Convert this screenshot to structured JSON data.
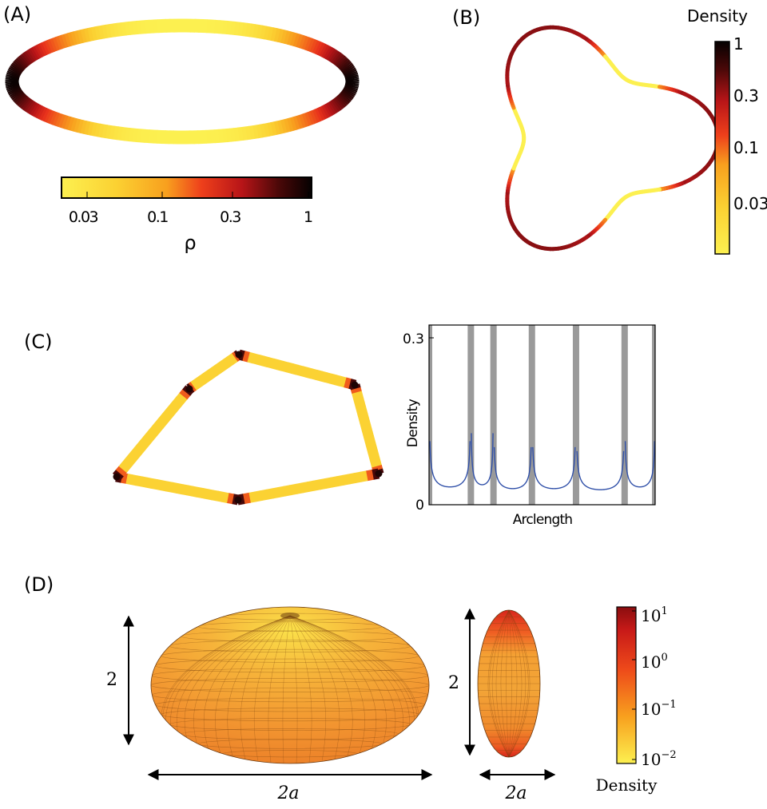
{
  "panels": {
    "a": {
      "label": "(A)",
      "colorbar": {
        "ticks": [
          "0.03",
          "0.1",
          "0.3",
          "1"
        ],
        "tick_values": [
          0.03,
          0.1,
          0.3,
          1
        ],
        "range": [
          0.015,
          1.3
        ],
        "title": "ρ"
      }
    },
    "b": {
      "label": "(B)",
      "colorbar": {
        "title": "Density",
        "ticks": [
          "1",
          "0.3",
          "0.1",
          "0.03"
        ],
        "tick_values": [
          1,
          0.3,
          0.1,
          0.03
        ],
        "range": [
          0.015,
          1.3
        ]
      }
    },
    "c": {
      "label": "(C)"
    },
    "d": {
      "label": "(D)",
      "height_label_left": "2",
      "width_label_left": "2a",
      "height_label_right": "2",
      "width_label_right": "2a",
      "colorbar": {
        "title": "Density",
        "ticks": [
          {
            "base": "10",
            "exp": "1"
          },
          {
            "base": "10",
            "exp": "0"
          },
          {
            "base": "10",
            "exp": "−1"
          },
          {
            "base": "10",
            "exp": "−2"
          }
        ]
      }
    }
  },
  "chart_data": {
    "type": "line",
    "title": "",
    "xlabel": "Arclength",
    "ylabel": "Density",
    "ylim": [
      0,
      0.3
    ],
    "yticks": [
      "0",
      "0.3"
    ],
    "grid": false,
    "series_color": "#2f4fa8",
    "vertex_band_color": "#9a9a9a",
    "segments": [
      {
        "x_range": [
          0,
          0.185
        ],
        "min": 0.032
      },
      {
        "x_range": [
          0.185,
          0.285
        ],
        "min": 0.036
      },
      {
        "x_range": [
          0.285,
          0.455
        ],
        "min": 0.029
      },
      {
        "x_range": [
          0.455,
          0.65
        ],
        "min": 0.029
      },
      {
        "x_range": [
          0.65,
          0.865
        ],
        "min": 0.027
      },
      {
        "x_range": [
          0.865,
          1.0
        ],
        "min": 0.032
      }
    ],
    "vertices_at": [
      0.185,
      0.285,
      0.455,
      0.65,
      0.865
    ]
  },
  "colors": {
    "heat": [
      "#fcf050",
      "#fbd132",
      "#f8a01e",
      "#f2661c",
      "#e8311c",
      "#b81518",
      "#7a0d10",
      "#3b0707",
      "#0a0202"
    ],
    "ellipsoid_fill": "#f28f2a",
    "ellipsoid_top": "#f6d44a",
    "colorbar_d": [
      "#fcf050",
      "#f8a01e",
      "#ee4a1a",
      "#b81518",
      "#8a0d0f"
    ]
  }
}
